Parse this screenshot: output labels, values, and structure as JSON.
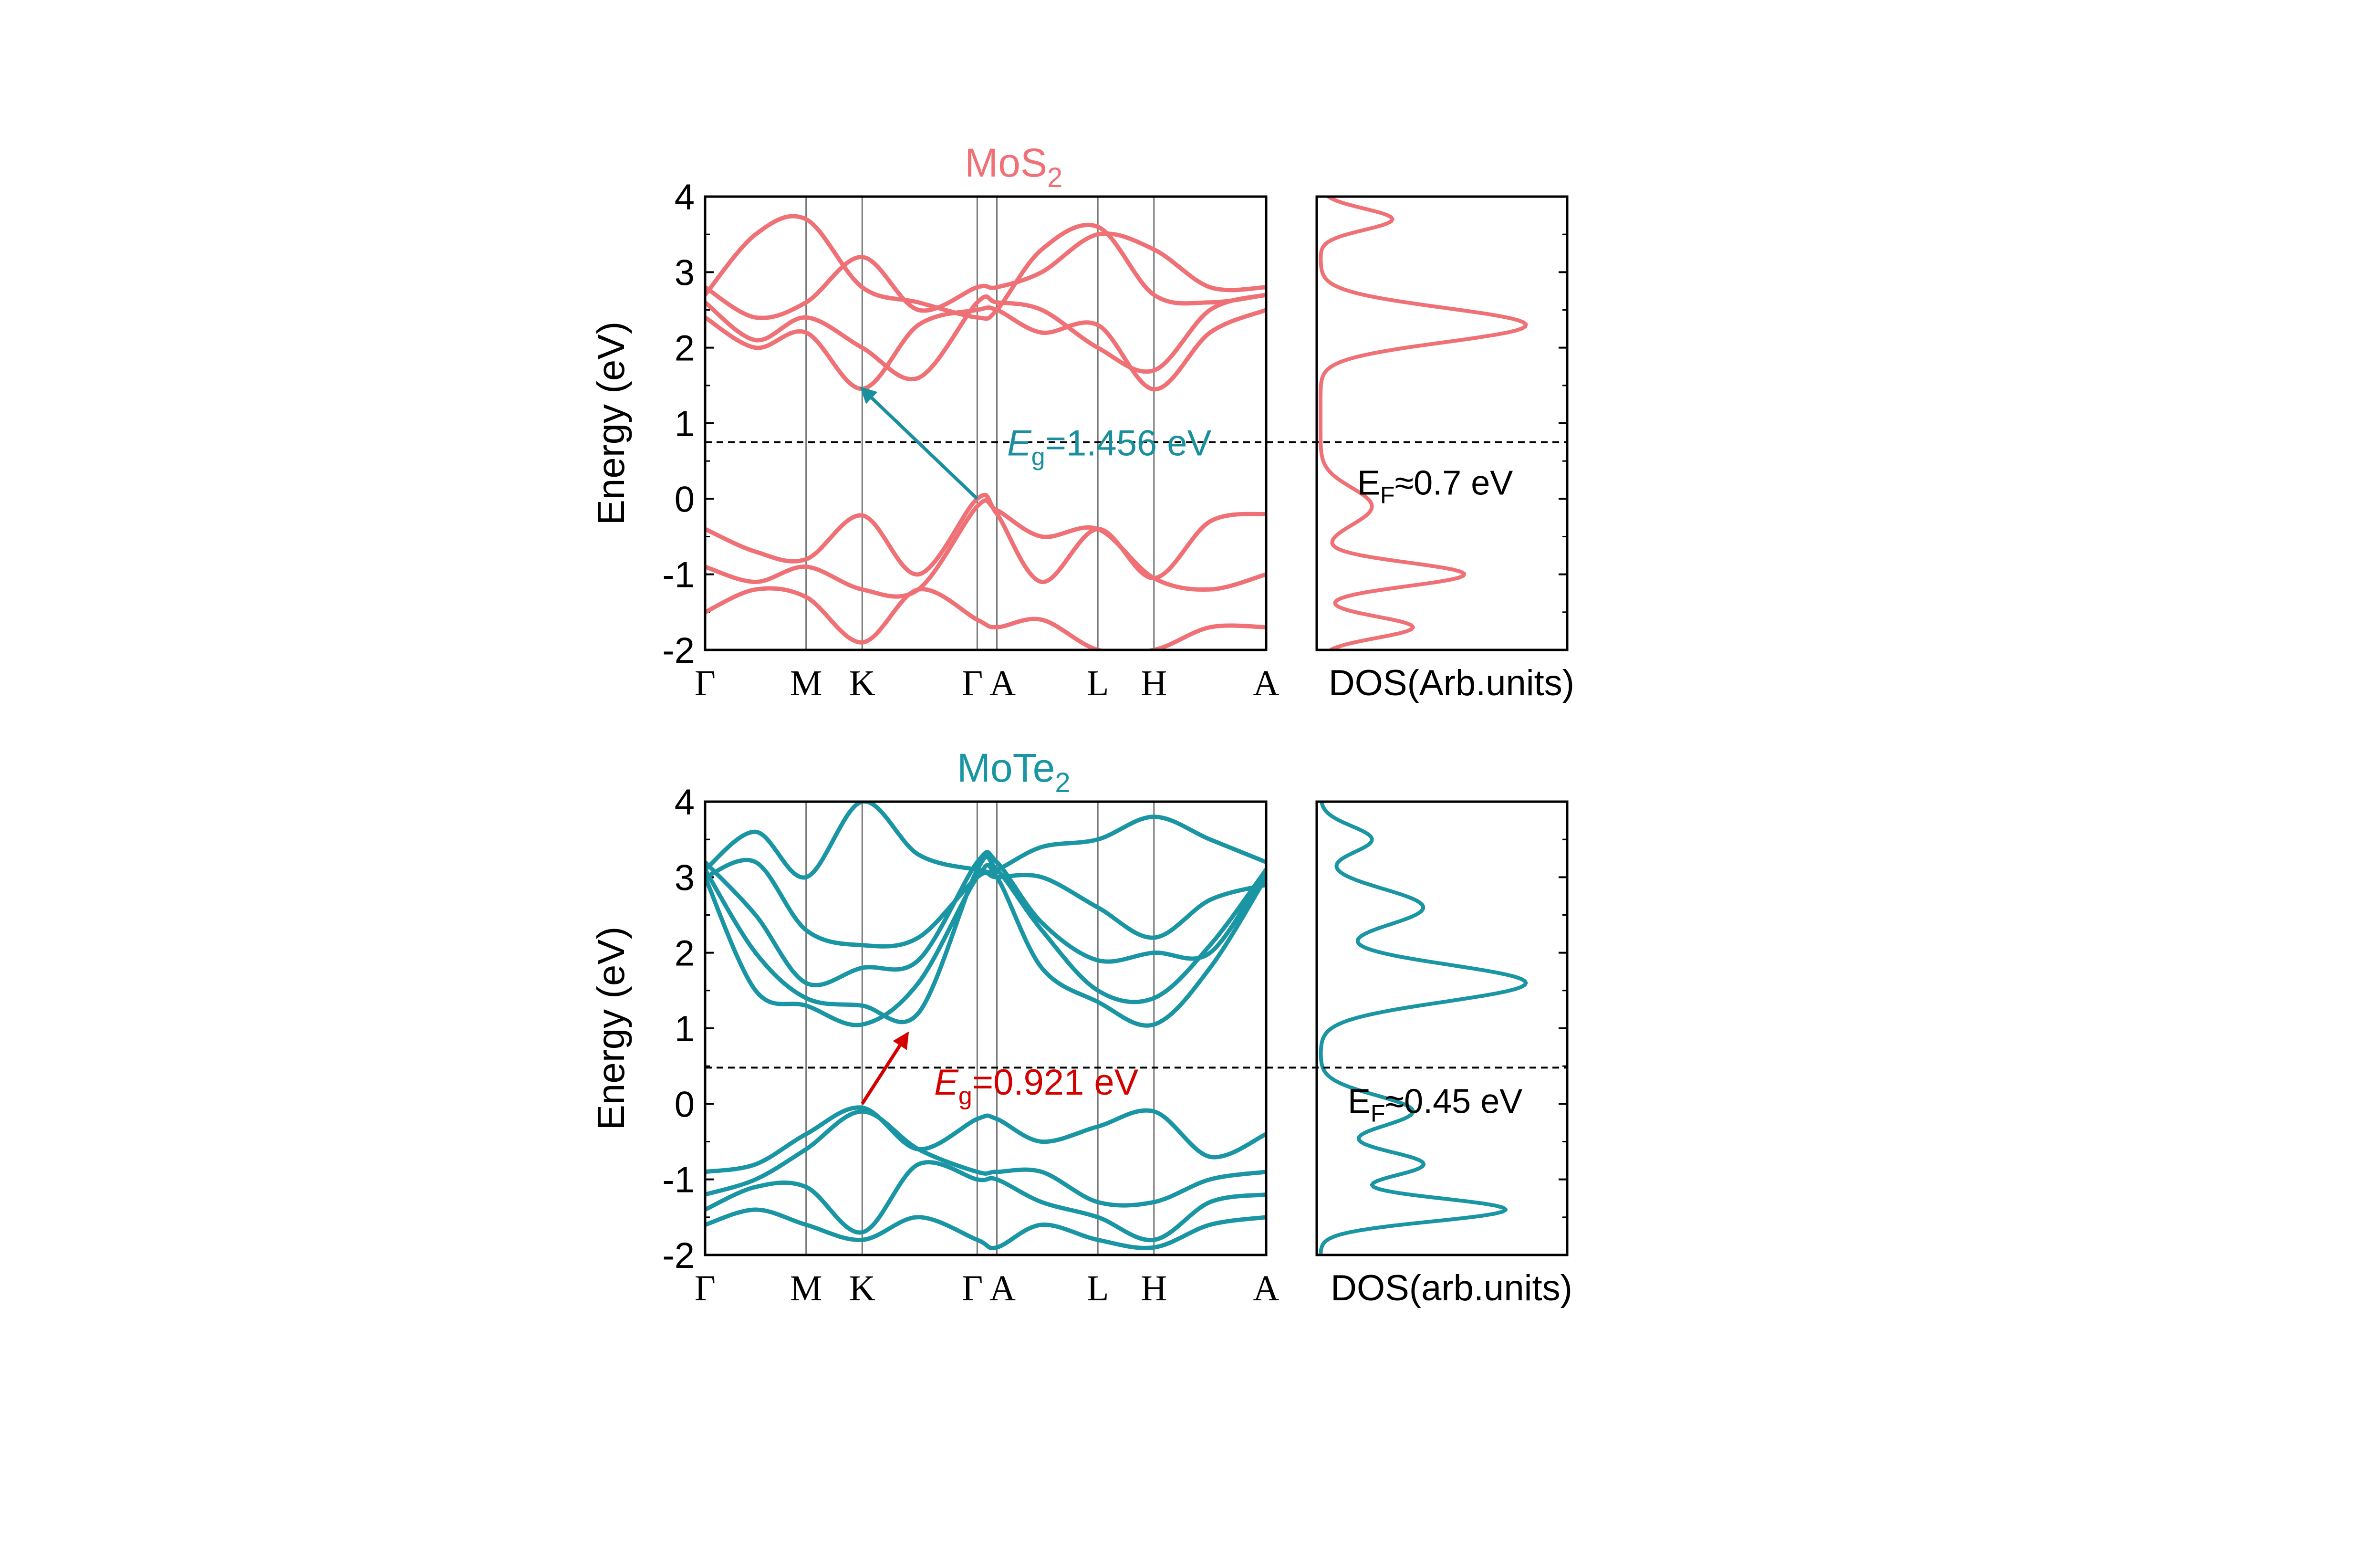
{
  "chart_data": [
    {
      "type": "line",
      "title": "MoS",
      "title_sub": "2",
      "color": "#ef7176",
      "ylabel": "Energy (eV)",
      "ylim": [
        -2,
        4
      ],
      "yticks": [
        "-2",
        "-1",
        "0",
        "1",
        "2",
        "3",
        "4"
      ],
      "k_points": [
        {
          "label": "Γ",
          "k": 0.0
        },
        {
          "label": "M",
          "k": 0.18
        },
        {
          "label": "K",
          "k": 0.28
        },
        {
          "label": "Γ",
          "k": 0.485
        },
        {
          "label": "A",
          "k": 0.52
        },
        {
          "label": "L",
          "k": 0.7
        },
        {
          "label": "H",
          "k": 0.8
        },
        {
          "label": "A",
          "k": 1.0
        }
      ],
      "fermi_level": 0.75,
      "gap_annotation": {
        "symbol": "E",
        "sub": "g",
        "text": "=1.456 eV",
        "color": "#1a8f9e",
        "from": [
          0.485,
          0.0
        ],
        "to": [
          0.28,
          1.456
        ],
        "label_at": [
          0.5,
          0.75
        ]
      },
      "bands": [
        {
          "name": "VB1",
          "points": [
            [
              0,
              -0.4
            ],
            [
              0.09,
              -0.7
            ],
            [
              0.18,
              -0.8
            ],
            [
              0.28,
              -0.22
            ],
            [
              0.38,
              -1.0
            ],
            [
              0.485,
              0.0
            ],
            [
              0.52,
              -0.2
            ],
            [
              0.6,
              -1.1
            ],
            [
              0.7,
              -0.4
            ],
            [
              0.8,
              -1.05
            ],
            [
              0.9,
              -0.3
            ],
            [
              1.0,
              -0.2
            ]
          ]
        },
        {
          "name": "VB2",
          "points": [
            [
              0,
              -0.9
            ],
            [
              0.09,
              -1.1
            ],
            [
              0.18,
              -0.9
            ],
            [
              0.28,
              -1.2
            ],
            [
              0.38,
              -1.2
            ],
            [
              0.485,
              -0.1
            ],
            [
              0.52,
              -0.15
            ],
            [
              0.6,
              -0.5
            ],
            [
              0.7,
              -0.4
            ],
            [
              0.8,
              -1.05
            ],
            [
              0.9,
              -1.2
            ],
            [
              1.0,
              -1.0
            ]
          ]
        },
        {
          "name": "VB3",
          "points": [
            [
              0,
              -1.5
            ],
            [
              0.09,
              -1.2
            ],
            [
              0.18,
              -1.3
            ],
            [
              0.28,
              -1.9
            ],
            [
              0.38,
              -1.2
            ],
            [
              0.485,
              -1.6
            ],
            [
              0.52,
              -1.7
            ],
            [
              0.6,
              -1.6
            ],
            [
              0.7,
              -2.0
            ],
            [
              0.8,
              -2.0
            ],
            [
              0.9,
              -1.7
            ],
            [
              1.0,
              -1.7
            ]
          ]
        },
        {
          "name": "CB1",
          "points": [
            [
              0,
              2.4
            ],
            [
              0.09,
              2.0
            ],
            [
              0.18,
              2.2
            ],
            [
              0.28,
              1.456
            ],
            [
              0.38,
              2.3
            ],
            [
              0.485,
              2.5
            ],
            [
              0.52,
              2.5
            ],
            [
              0.6,
              2.2
            ],
            [
              0.7,
              2.3
            ],
            [
              0.8,
              1.45
            ],
            [
              0.9,
              2.2
            ],
            [
              1.0,
              2.5
            ]
          ]
        },
        {
          "name": "CB2",
          "points": [
            [
              0,
              2.6
            ],
            [
              0.09,
              2.1
            ],
            [
              0.18,
              2.4
            ],
            [
              0.28,
              2.0
            ],
            [
              0.38,
              1.6
            ],
            [
              0.485,
              2.6
            ],
            [
              0.52,
              2.6
            ],
            [
              0.6,
              2.5
            ],
            [
              0.7,
              2.0
            ],
            [
              0.8,
              1.7
            ],
            [
              0.9,
              2.5
            ],
            [
              1.0,
              2.7
            ]
          ]
        },
        {
          "name": "CB3",
          "points": [
            [
              0,
              2.8
            ],
            [
              0.09,
              2.4
            ],
            [
              0.18,
              2.6
            ],
            [
              0.28,
              3.2
            ],
            [
              0.38,
              2.5
            ],
            [
              0.485,
              2.8
            ],
            [
              0.52,
              2.8
            ],
            [
              0.6,
              3.0
            ],
            [
              0.7,
              3.5
            ],
            [
              0.8,
              3.3
            ],
            [
              0.9,
              2.8
            ],
            [
              1.0,
              2.8
            ]
          ]
        },
        {
          "name": "CB4",
          "points": [
            [
              0,
              2.7
            ],
            [
              0.09,
              3.5
            ],
            [
              0.18,
              3.7
            ],
            [
              0.28,
              2.8
            ],
            [
              0.38,
              2.6
            ],
            [
              0.485,
              2.4
            ],
            [
              0.52,
              2.5
            ],
            [
              0.6,
              3.3
            ],
            [
              0.7,
              3.6
            ],
            [
              0.8,
              2.7
            ],
            [
              0.9,
              2.6
            ],
            [
              1.0,
              2.7
            ]
          ]
        }
      ],
      "dos": {
        "xlabel": "DOS(Arb.units)",
        "fermi_label": {
          "symbol": "E",
          "sub": "F",
          "text": "≈0.7 eV"
        },
        "peaks": [
          {
            "e": 3.7,
            "h": 0.35,
            "w": 0.2
          },
          {
            "e": 2.3,
            "h": 1.0,
            "w": 0.32
          },
          {
            "e": -1.0,
            "h": 0.7,
            "w": 0.22
          },
          {
            "e": -0.1,
            "h": 0.25,
            "w": 0.35
          },
          {
            "e": -1.7,
            "h": 0.45,
            "w": 0.2
          }
        ]
      }
    },
    {
      "type": "line",
      "title": "MoTe",
      "title_sub": "2",
      "color": "#1a95a4",
      "ylabel": "Energy (eV)",
      "ylim": [
        -2,
        4
      ],
      "yticks": [
        "-2",
        "-1",
        "0",
        "1",
        "2",
        "3",
        "4"
      ],
      "k_points": [
        {
          "label": "Γ",
          "k": 0.0
        },
        {
          "label": "M",
          "k": 0.18
        },
        {
          "label": "K",
          "k": 0.28
        },
        {
          "label": "Γ",
          "k": 0.485
        },
        {
          "label": "A",
          "k": 0.52
        },
        {
          "label": "L",
          "k": 0.7
        },
        {
          "label": "H",
          "k": 0.8
        },
        {
          "label": "A",
          "k": 1.0
        }
      ],
      "fermi_level": 0.48,
      "gap_annotation": {
        "symbol": "E",
        "sub": "g",
        "text": "=0.921 eV",
        "color": "#d40000",
        "from": [
          0.28,
          0.0
        ],
        "to": [
          0.36,
          0.921
        ],
        "label_at": [
          0.37,
          0.3
        ]
      },
      "bands": [
        {
          "name": "VB1",
          "points": [
            [
              0,
              -0.9
            ],
            [
              0.09,
              -0.8
            ],
            [
              0.18,
              -0.4
            ],
            [
              0.28,
              -0.05
            ],
            [
              0.38,
              -0.6
            ],
            [
              0.485,
              -0.2
            ],
            [
              0.52,
              -0.2
            ],
            [
              0.6,
              -0.5
            ],
            [
              0.7,
              -0.3
            ],
            [
              0.8,
              -0.1
            ],
            [
              0.9,
              -0.7
            ],
            [
              1.0,
              -0.4
            ]
          ]
        },
        {
          "name": "VB2",
          "points": [
            [
              0,
              -1.2
            ],
            [
              0.09,
              -1.0
            ],
            [
              0.18,
              -0.6
            ],
            [
              0.28,
              -0.1
            ],
            [
              0.38,
              -0.6
            ],
            [
              0.485,
              -0.9
            ],
            [
              0.52,
              -0.9
            ],
            [
              0.6,
              -0.9
            ],
            [
              0.7,
              -1.3
            ],
            [
              0.8,
              -1.3
            ],
            [
              0.9,
              -1.0
            ],
            [
              1.0,
              -0.9
            ]
          ]
        },
        {
          "name": "VB3",
          "points": [
            [
              0,
              -1.4
            ],
            [
              0.09,
              -1.1
            ],
            [
              0.18,
              -1.1
            ],
            [
              0.28,
              -1.7
            ],
            [
              0.38,
              -0.8
            ],
            [
              0.485,
              -1.0
            ],
            [
              0.52,
              -1.0
            ],
            [
              0.6,
              -1.3
            ],
            [
              0.7,
              -1.5
            ],
            [
              0.8,
              -1.8
            ],
            [
              0.9,
              -1.3
            ],
            [
              1.0,
              -1.2
            ]
          ]
        },
        {
          "name": "VB4",
          "points": [
            [
              0,
              -1.6
            ],
            [
              0.09,
              -1.4
            ],
            [
              0.18,
              -1.6
            ],
            [
              0.28,
              -1.8
            ],
            [
              0.38,
              -1.5
            ],
            [
              0.485,
              -1.8
            ],
            [
              0.52,
              -1.9
            ],
            [
              0.6,
              -1.6
            ],
            [
              0.7,
              -1.8
            ],
            [
              0.8,
              -1.9
            ],
            [
              0.9,
              -1.6
            ],
            [
              1.0,
              -1.5
            ]
          ]
        },
        {
          "name": "CB1",
          "points": [
            [
              0,
              3.0
            ],
            [
              0.09,
              1.5
            ],
            [
              0.18,
              1.3
            ],
            [
              0.28,
              1.05
            ],
            [
              0.38,
              1.6
            ],
            [
              0.485,
              3.0
            ],
            [
              0.52,
              3.0
            ],
            [
              0.6,
              1.8
            ],
            [
              0.7,
              1.35
            ],
            [
              0.8,
              1.05
            ],
            [
              0.9,
              1.8
            ],
            [
              1.0,
              3.0
            ]
          ]
        },
        {
          "name": "CB2",
          "points": [
            [
              0,
              3.1
            ],
            [
              0.09,
              2.0
            ],
            [
              0.18,
              1.4
            ],
            [
              0.28,
              1.3
            ],
            [
              0.38,
              1.2
            ],
            [
              0.485,
              3.1
            ],
            [
              0.52,
              3.1
            ],
            [
              0.6,
              2.3
            ],
            [
              0.7,
              1.5
            ],
            [
              0.8,
              1.4
            ],
            [
              0.9,
              2.1
            ],
            [
              1.0,
              3.1
            ]
          ]
        },
        {
          "name": "CB3",
          "points": [
            [
              0,
              3.2
            ],
            [
              0.09,
              2.5
            ],
            [
              0.18,
              1.6
            ],
            [
              0.28,
              1.8
            ],
            [
              0.38,
              1.9
            ],
            [
              0.485,
              3.2
            ],
            [
              0.52,
              3.2
            ],
            [
              0.6,
              2.4
            ],
            [
              0.7,
              1.9
            ],
            [
              0.8,
              2.0
            ],
            [
              0.9,
              2.0
            ],
            [
              1.0,
              3.1
            ]
          ]
        },
        {
          "name": "CB4",
          "points": [
            [
              0,
              3.0
            ],
            [
              0.09,
              3.2
            ],
            [
              0.18,
              2.3
            ],
            [
              0.28,
              2.1
            ],
            [
              0.38,
              2.2
            ],
            [
              0.485,
              3.0
            ],
            [
              0.52,
              3.0
            ],
            [
              0.6,
              3.0
            ],
            [
              0.7,
              2.6
            ],
            [
              0.8,
              2.2
            ],
            [
              0.9,
              2.7
            ],
            [
              1.0,
              2.9
            ]
          ]
        },
        {
          "name": "CB5",
          "points": [
            [
              0,
              3.1
            ],
            [
              0.09,
              3.6
            ],
            [
              0.18,
              3.0
            ],
            [
              0.28,
              4.0
            ],
            [
              0.38,
              3.3
            ],
            [
              0.485,
              3.1
            ],
            [
              0.52,
              3.1
            ],
            [
              0.6,
              3.4
            ],
            [
              0.7,
              3.5
            ],
            [
              0.8,
              3.8
            ],
            [
              0.9,
              3.5
            ],
            [
              1.0,
              3.2
            ]
          ]
        }
      ],
      "dos": {
        "xlabel": "DOS(arb.units)",
        "fermi_label": {
          "symbol": "E",
          "sub": "F",
          "text": "≈0.45 eV"
        },
        "peaks": [
          {
            "e": 1.6,
            "h": 1.0,
            "w": 0.35
          },
          {
            "e": 2.6,
            "h": 0.5,
            "w": 0.35
          },
          {
            "e": 3.5,
            "h": 0.25,
            "w": 0.25
          },
          {
            "e": -1.4,
            "h": 0.9,
            "w": 0.22
          },
          {
            "e": -0.8,
            "h": 0.5,
            "w": 0.25
          },
          {
            "e": -0.1,
            "h": 0.45,
            "w": 0.3
          }
        ]
      }
    }
  ]
}
